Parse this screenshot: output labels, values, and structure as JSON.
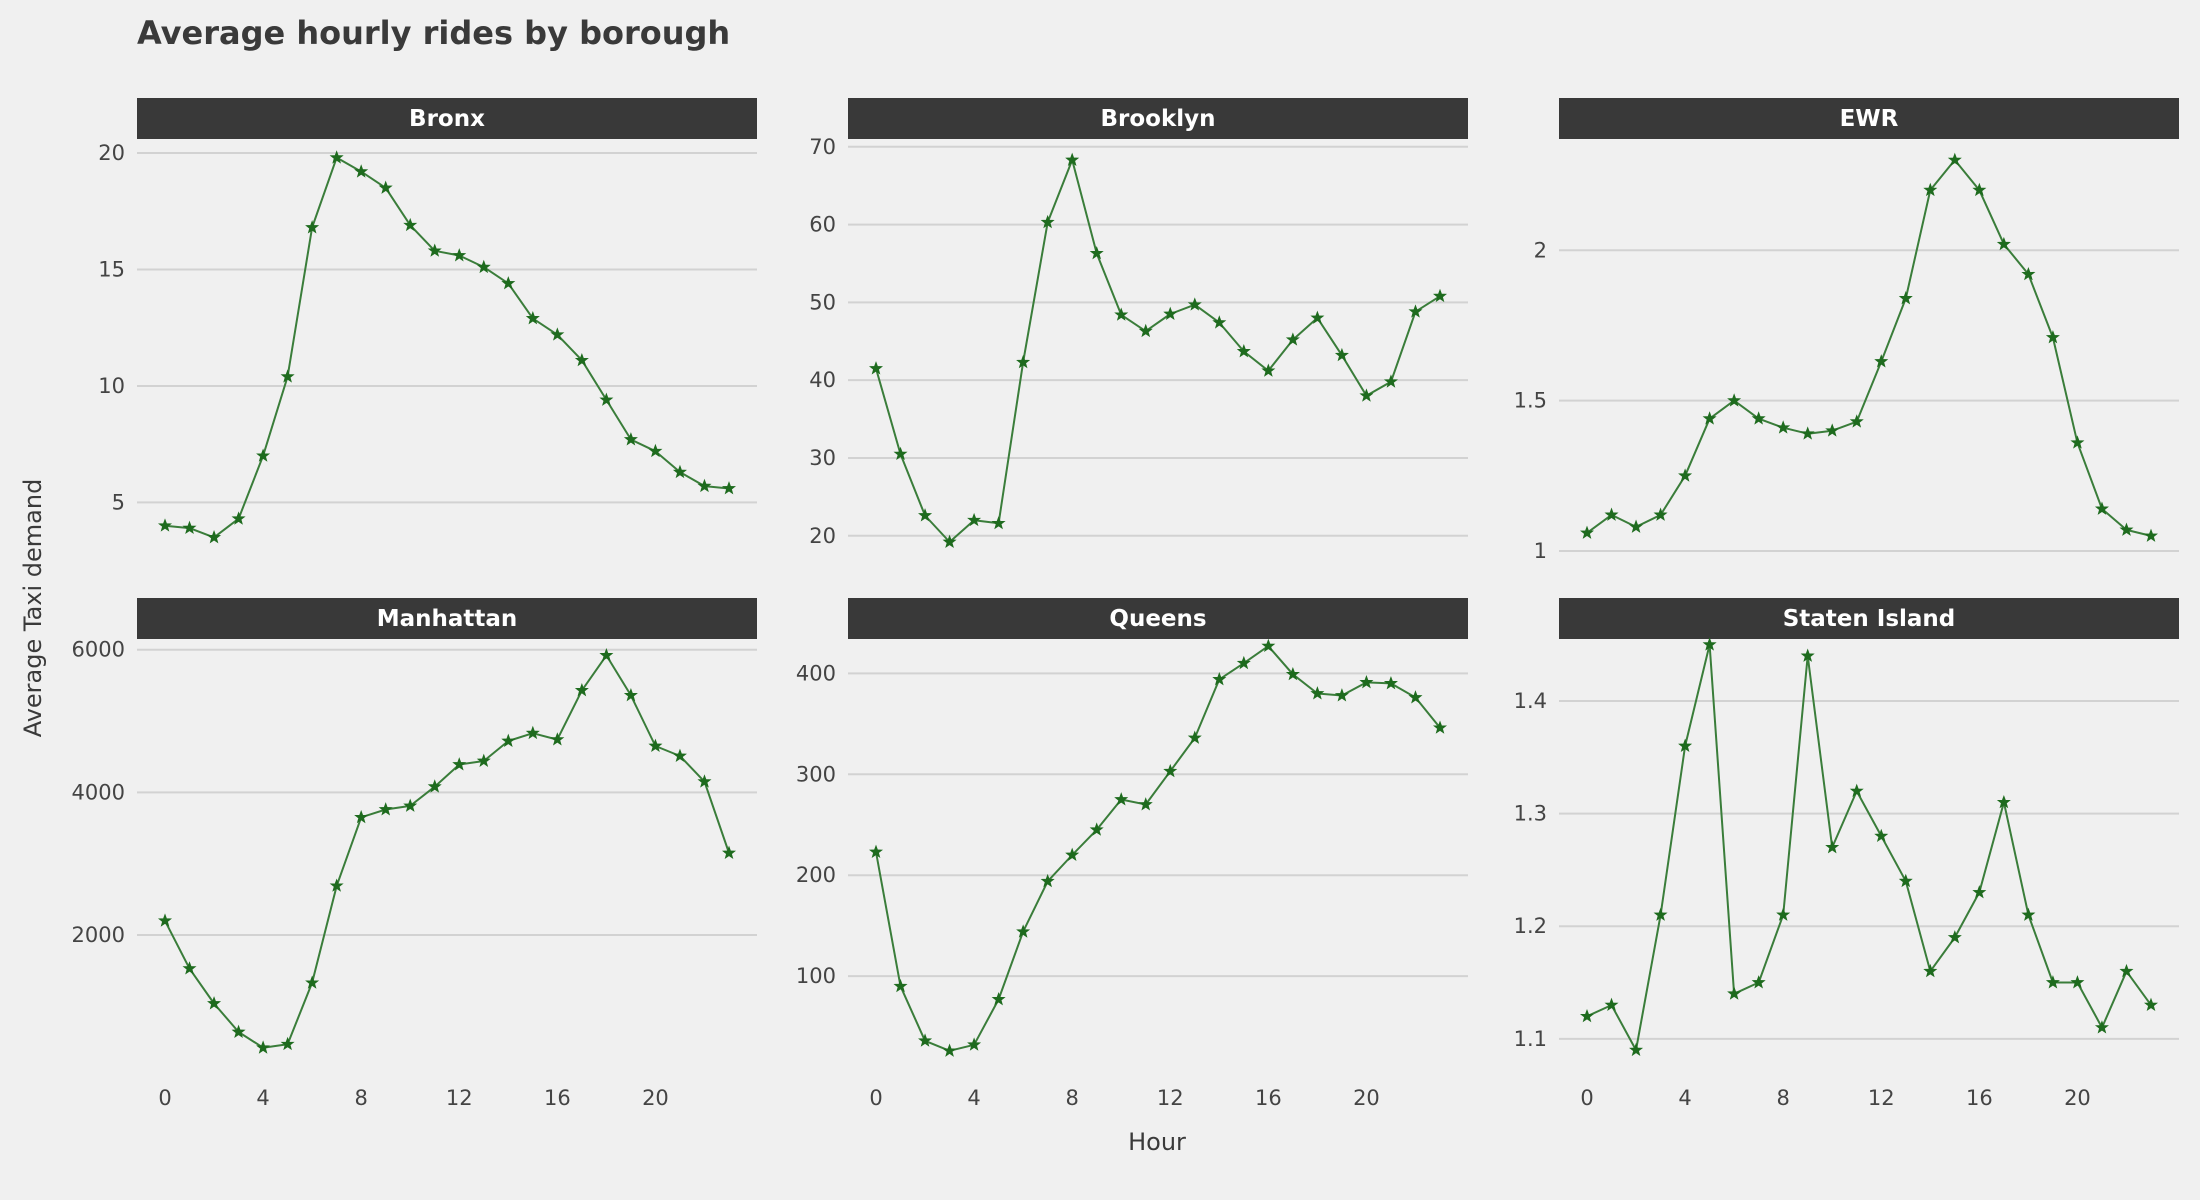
{
  "chart_data": {
    "type": "line",
    "title": "Average hourly rides by borough",
    "xlabel": "Hour",
    "ylabel": "Average Taxi demand",
    "line_color": "#3a7d3a",
    "marker_color": "#1e6b1e",
    "marker": "star",
    "grid": "horizontal",
    "x": [
      0,
      1,
      2,
      3,
      4,
      5,
      6,
      7,
      8,
      9,
      10,
      11,
      12,
      13,
      14,
      15,
      16,
      17,
      18,
      19,
      20,
      21,
      22,
      23
    ],
    "xticks": [
      0,
      4,
      8,
      12,
      16,
      20
    ],
    "panels": [
      {
        "name": "Bronx",
        "ylim": [
          2.4,
          20.6
        ],
        "yticks": [
          5,
          10,
          15,
          20
        ],
        "ytick_labels": [
          "5",
          "10",
          "15",
          "20"
        ],
        "values": [
          4.0,
          3.9,
          3.5,
          4.3,
          7.0,
          10.4,
          16.8,
          19.8,
          19.2,
          18.5,
          16.9,
          15.8,
          15.6,
          15.1,
          14.4,
          12.9,
          12.2,
          11.1,
          9.4,
          7.7,
          7.2,
          6.3,
          5.7,
          5.6
        ]
      },
      {
        "name": "Brooklyn",
        "ylim": [
          16.5,
          71
        ],
        "yticks": [
          20,
          30,
          40,
          50,
          60,
          70
        ],
        "ytick_labels": [
          "20",
          "30",
          "40",
          "50",
          "60",
          "70"
        ],
        "values": [
          41.5,
          30.5,
          22.6,
          19.2,
          22.0,
          21.6,
          42.3,
          60.3,
          68.3,
          56.3,
          48.4,
          46.3,
          48.5,
          49.7,
          47.4,
          43.7,
          41.2,
          45.2,
          48.0,
          43.2,
          38.0,
          39.8,
          48.8,
          50.8
        ]
      },
      {
        "name": "EWR",
        "ylim": [
          0.96,
          2.37
        ],
        "yticks": [
          1,
          1.5,
          2
        ],
        "ytick_labels": [
          "1",
          "1.5",
          "2"
        ],
        "values": [
          1.06,
          1.12,
          1.08,
          1.12,
          1.25,
          1.44,
          1.5,
          1.44,
          1.41,
          1.39,
          1.4,
          1.43,
          1.63,
          1.84,
          2.2,
          2.3,
          2.2,
          2.02,
          1.92,
          1.71,
          1.36,
          1.14,
          1.07,
          1.05
        ]
      },
      {
        "name": "Manhattan",
        "ylim": [
          150,
          6150
        ],
        "yticks": [
          2000,
          4000,
          6000
        ],
        "ytick_labels": [
          "2000",
          "4000",
          "6000"
        ],
        "values": [
          2200,
          1530,
          1040,
          640,
          420,
          470,
          1330,
          2690,
          3650,
          3760,
          3810,
          4080,
          4390,
          4440,
          4720,
          4830,
          4740,
          5430,
          5920,
          5360,
          4650,
          4510,
          4150,
          3150
        ]
      },
      {
        "name": "Queens",
        "ylim": [
          10,
          434
        ],
        "yticks": [
          100,
          200,
          300,
          400
        ],
        "ytick_labels": [
          "100",
          "200",
          "300",
          "400"
        ],
        "values": [
          223,
          90,
          36,
          26,
          32,
          77,
          144,
          194,
          220,
          245,
          275,
          270,
          303,
          336,
          394,
          410,
          427,
          399,
          380,
          378,
          391,
          390,
          376,
          346
        ]
      },
      {
        "name": "Staten Island",
        "ylim": [
          1.075,
          1.455
        ],
        "yticks": [
          1.1,
          1.2,
          1.3,
          1.4
        ],
        "ytick_labels": [
          "1.1",
          "1.2",
          "1.3",
          "1.4"
        ],
        "values": [
          1.12,
          1.13,
          1.09,
          1.21,
          1.36,
          1.45,
          1.14,
          1.15,
          1.21,
          1.44,
          1.27,
          1.32,
          1.28,
          1.24,
          1.16,
          1.19,
          1.23,
          1.31,
          1.21,
          1.15,
          1.15,
          1.11,
          1.16,
          1.13
        ]
      }
    ]
  }
}
